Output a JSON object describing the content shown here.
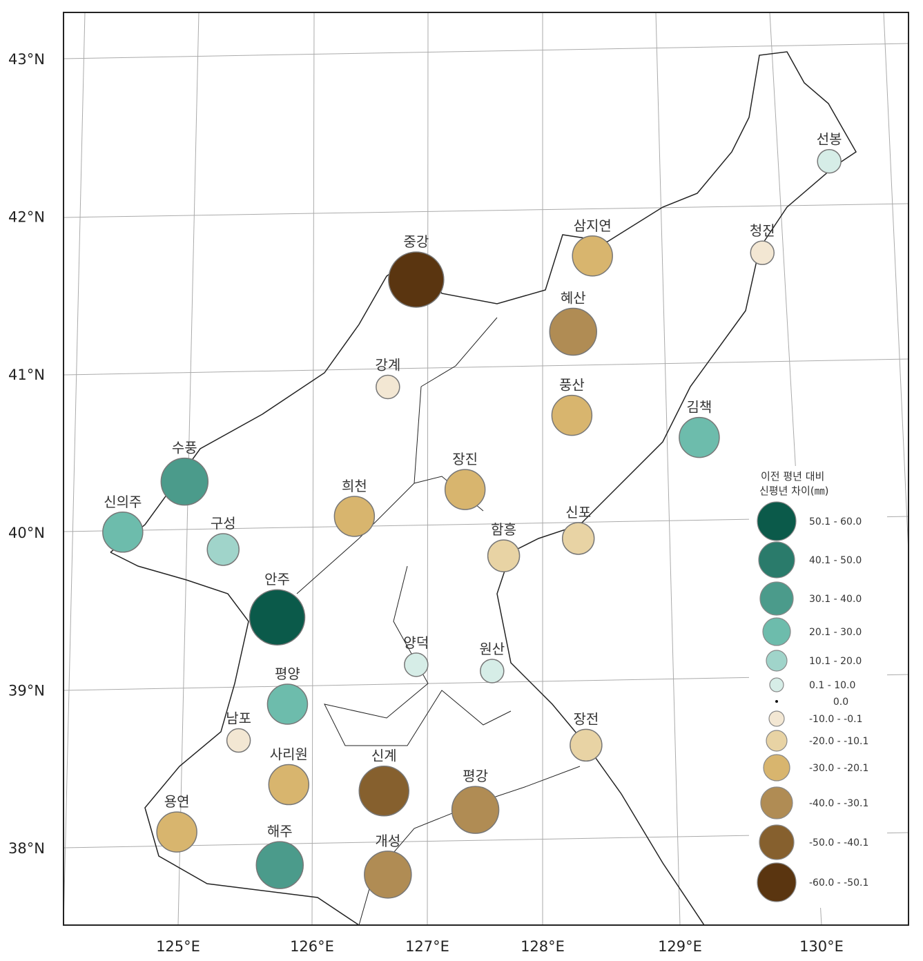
{
  "legend": {
    "title_line1": "이전 평년 대비",
    "title_line2": "신평년 차이(㎜)",
    "classes": [
      {
        "label": "50.1 - 60.0",
        "color": "#0b5a4a"
      },
      {
        "label": "40.1 - 50.0",
        "color": "#2a7b6b"
      },
      {
        "label": "30.1 - 40.0",
        "color": "#4b9b8b"
      },
      {
        "label": "20.1 - 30.0",
        "color": "#6dbcac"
      },
      {
        "label": "10.1 - 20.0",
        "color": "#a0d4ca"
      },
      {
        "label": "0.1 - 10.0",
        "color": "#d6ede7"
      },
      {
        "label": "0.0",
        "color": "#111111"
      },
      {
        "label": "-10.0 - -0.1",
        "color": "#f3e7d3"
      },
      {
        "label": "-20.0 - -10.1",
        "color": "#e8d3a4"
      },
      {
        "label": "-30.0 - -20.1",
        "color": "#d8b56e"
      },
      {
        "label": "-40.0 - -30.1",
        "color": "#b08c54"
      },
      {
        "label": "-50.0 - -40.1",
        "color": "#86602e"
      },
      {
        "label": "-60.0 - -50.1",
        "color": "#5a3510"
      }
    ]
  },
  "axes": {
    "lat_labels": [
      "43°N",
      "42°N",
      "41°N",
      "40°N",
      "39°N",
      "38°N"
    ],
    "lon_labels": [
      "125°E",
      "126°E",
      "127°E",
      "128°E",
      "129°E",
      "130°E"
    ]
  },
  "stations": [
    {
      "name": "선봉",
      "lon": 130.06,
      "lat": 42.35,
      "class": 5
    },
    {
      "name": "청진",
      "lon": 129.54,
      "lat": 41.77,
      "class": 7
    },
    {
      "name": "삼지연",
      "lon": 128.22,
      "lat": 41.75,
      "class": 9
    },
    {
      "name": "중강",
      "lon": 126.85,
      "lat": 41.6,
      "class": 12
    },
    {
      "name": "혜산",
      "lon": 128.07,
      "lat": 41.27,
      "class": 10
    },
    {
      "name": "강계",
      "lon": 126.63,
      "lat": 40.92,
      "class": 7
    },
    {
      "name": "풍산",
      "lon": 128.06,
      "lat": 40.74,
      "class": 9
    },
    {
      "name": "김책",
      "lon": 129.05,
      "lat": 40.6,
      "class": 3
    },
    {
      "name": "수풍",
      "lon": 125.05,
      "lat": 40.32,
      "class": 2
    },
    {
      "name": "장진",
      "lon": 127.23,
      "lat": 40.27,
      "class": 9
    },
    {
      "name": "희천",
      "lon": 126.37,
      "lat": 40.1,
      "class": 9
    },
    {
      "name": "신의주",
      "lon": 124.57,
      "lat": 40.0,
      "class": 3
    },
    {
      "name": "구성",
      "lon": 125.35,
      "lat": 39.89,
      "class": 4
    },
    {
      "name": "신포",
      "lon": 128.11,
      "lat": 39.96,
      "class": 8
    },
    {
      "name": "함흥",
      "lon": 127.53,
      "lat": 39.85,
      "class": 8
    },
    {
      "name": "안주",
      "lon": 125.77,
      "lat": 39.46,
      "class": 0
    },
    {
      "name": "양덕",
      "lon": 126.85,
      "lat": 39.16,
      "class": 5
    },
    {
      "name": "원산",
      "lon": 127.44,
      "lat": 39.12,
      "class": 5
    },
    {
      "name": "평양",
      "lon": 125.85,
      "lat": 38.91,
      "class": 3
    },
    {
      "name": "남포",
      "lon": 125.47,
      "lat": 38.68,
      "class": 7
    },
    {
      "name": "장전",
      "lon": 128.17,
      "lat": 38.65,
      "class": 8
    },
    {
      "name": "사리원",
      "lon": 125.86,
      "lat": 38.4,
      "class": 9
    },
    {
      "name": "신계",
      "lon": 126.6,
      "lat": 38.36,
      "class": 11
    },
    {
      "name": "평강",
      "lon": 127.31,
      "lat": 38.24,
      "class": 10
    },
    {
      "name": "용연",
      "lon": 124.99,
      "lat": 38.1,
      "class": 9
    },
    {
      "name": "해주",
      "lon": 125.79,
      "lat": 37.89,
      "class": 2
    },
    {
      "name": "개성",
      "lon": 126.63,
      "lat": 37.83,
      "class": 10
    }
  ]
}
